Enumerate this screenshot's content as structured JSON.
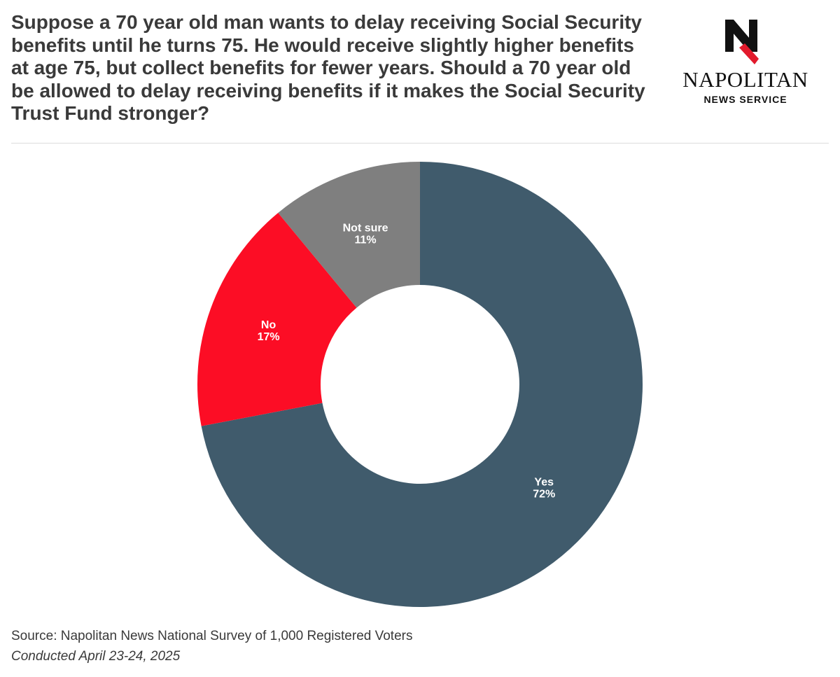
{
  "title": "Suppose a 70 year old man wants to delay receiving Social Security benefits until he turns 75. He would receive slightly higher benefits at age 75, but collect benefits for fewer years. Should a 70 year old be allowed to delay receiving benefits if it makes the Social Security Trust Fund stronger?",
  "logo": {
    "name": "NAPOLITAN",
    "subtitle": "NEWS SERVICE"
  },
  "chart_data": {
    "type": "pie",
    "variant": "donut",
    "slices": [
      {
        "label": "Yes",
        "value": 72,
        "value_label": "72%",
        "color": "#405b6c"
      },
      {
        "label": "No",
        "value": 17,
        "value_label": "17%",
        "color": "#fc0d25"
      },
      {
        "label": "Not sure",
        "value": 11,
        "value_label": "11%",
        "color": "#7f7f7f"
      }
    ],
    "start": "12 o'clock",
    "direction": "clockwise"
  },
  "footer": {
    "source": "Source: Napolitan News National Survey of 1,000 Registered Voters",
    "date": "Conducted April 23-24, 2025"
  }
}
